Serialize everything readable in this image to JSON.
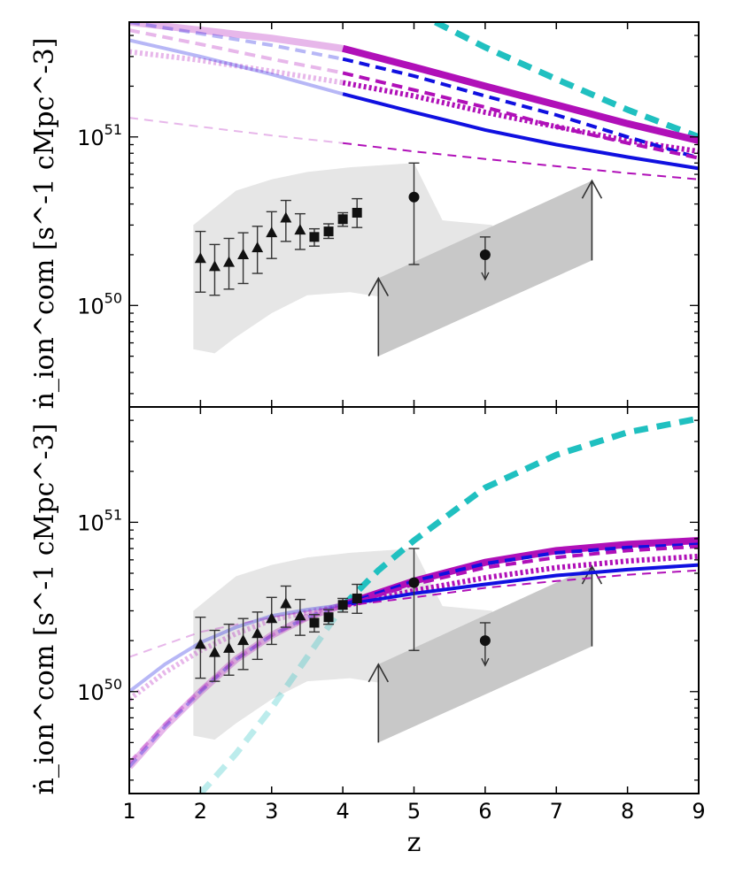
{
  "chart_data": [
    {
      "type": "line",
      "panel": "top",
      "ylabel": "ṅ_ion^com  [s^-1  cMpc^-3]",
      "yscale": "log",
      "xlim": [
        1,
        9
      ],
      "ylim": [
        2.5e+49,
        4.8e+51
      ],
      "y_ticks": [
        {
          "base": "10",
          "exp": "50",
          "value": 1e+50
        },
        {
          "base": "10",
          "exp": "51",
          "value": 1e+51
        }
      ],
      "series": [
        {
          "name": "cyan thick dashed",
          "color": "#20c0c0",
          "style": "dashed",
          "width": 7,
          "alpha_before_z4": 1.0,
          "x": [
            5.3,
            6,
            7,
            8,
            9
          ],
          "y": [
            4.8e+51,
            3.4e+51,
            2.2e+51,
            1.45e+51,
            1e+51
          ]
        },
        {
          "name": "magenta thick solid",
          "color": "#b010b8",
          "style": "solid",
          "width": 8,
          "x": [
            1,
            2,
            3,
            4,
            5,
            6,
            7,
            8,
            9
          ],
          "y": [
            4.8e+51,
            4.3e+51,
            3.85e+51,
            3.35e+51,
            2.6e+51,
            2e+51,
            1.55e+51,
            1.2e+51,
            9.5e+50
          ]
        },
        {
          "name": "magenta dotted",
          "color": "#b010b8",
          "style": "dotted",
          "width": 6,
          "x": [
            1,
            2,
            3,
            4,
            5,
            6,
            7,
            8,
            9
          ],
          "y": [
            3.2e+51,
            2.85e+51,
            2.45e+51,
            2.1e+51,
            1.75e+51,
            1.4e+51,
            1.15e+51,
            9.5e+50,
            8.2e+50
          ]
        },
        {
          "name": "blue dashed",
          "color": "#1010e0",
          "style": "dashed",
          "width": 4,
          "x": [
            1,
            2,
            3,
            4,
            5,
            6,
            7,
            8,
            9
          ],
          "y": [
            4.8e+51,
            4.1e+51,
            3.5e+51,
            2.9e+51,
            2.3e+51,
            1.75e+51,
            1.35e+51,
            1e+51,
            7.5e+50
          ]
        },
        {
          "name": "magenta dashed",
          "color": "#b010b8",
          "style": "dashed",
          "width": 4,
          "x": [
            1,
            2,
            3,
            4,
            5,
            6,
            7,
            8,
            9
          ],
          "y": [
            4.3e+51,
            3.55e+51,
            2.9e+51,
            2.4e+51,
            1.9e+51,
            1.5e+51,
            1.15e+51,
            9.2e+50,
            7.5e+50
          ]
        },
        {
          "name": "blue solid",
          "color": "#1010e0",
          "style": "solid",
          "width": 4,
          "x": [
            1,
            2,
            3,
            4,
            5,
            6,
            7,
            8,
            9
          ],
          "y": [
            3.75e+51,
            3e+51,
            2.35e+51,
            1.8e+51,
            1.4e+51,
            1.1e+51,
            9e+50,
            7.6e+50,
            6.5e+50
          ]
        },
        {
          "name": "magenta thin dashed",
          "color": "#b010b8",
          "style": "dashed",
          "width": 2,
          "x": [
            1,
            2,
            3,
            4,
            5,
            6,
            7,
            8,
            9
          ],
          "y": [
            1.3e+51,
            1.15e+51,
            1.02e+51,
            9.2e+50,
            8.2e+50,
            7.4e+50,
            6.7e+50,
            6.1e+50,
            5.6e+50
          ]
        }
      ],
      "triangles": {
        "x": [
          2.0,
          2.2,
          2.4,
          2.6,
          2.8,
          3.0,
          3.2,
          3.4
        ],
        "y": [
          1.9e+50,
          1.7e+50,
          1.8e+50,
          2e+50,
          2.2e+50,
          2.7e+50,
          3.3e+50,
          2.8e+50
        ],
        "ylo": [
          1.2e+50,
          1.15e+50,
          1.25e+50,
          1.35e+50,
          1.55e+50,
          1.9e+50,
          2.4e+50,
          2.15e+50
        ],
        "yhi": [
          2.75e+50,
          2.3e+50,
          2.5e+50,
          2.7e+50,
          2.95e+50,
          3.6e+50,
          4.2e+50,
          3.5e+50
        ]
      },
      "squares": {
        "x": [
          3.6,
          3.8,
          4.0,
          4.2
        ],
        "y": [
          2.55e+50,
          2.75e+50,
          3.25e+50,
          3.55e+50
        ],
        "ylo": [
          2.25e+50,
          2.5e+50,
          2.95e+50,
          2.9e+50
        ],
        "yhi": [
          2.85e+50,
          3.05e+50,
          3.55e+50,
          4.3e+50
        ]
      },
      "circles": [
        {
          "x": 5.0,
          "y": 4.4e+50,
          "ylo": 1.75e+50,
          "yhi": 7e+50
        },
        {
          "x": 6.0,
          "y": 2e+50,
          "ylo": 1.9e+50,
          "yhi": 2.55e+50,
          "upper_limit": true
        }
      ],
      "light_band": {
        "x": [
          1.9,
          2.2,
          2.5,
          3.0,
          3.5,
          4.1,
          5.0,
          5.4,
          6.1
        ],
        "lower": [
          5.5e+49,
          5.2e+49,
          6.5e+49,
          9e+49,
          1.15e+50,
          1.2e+50,
          1.05e+50,
          1e+50,
          1e+50
        ],
        "upper": [
          3e+50,
          3.8e+50,
          4.8e+50,
          5.6e+50,
          6.2e+50,
          6.6e+50,
          7e+50,
          3.2e+50,
          3e+50
        ]
      },
      "dark_band": {
        "x": [
          4.5,
          7.5
        ],
        "lower": [
          5e+49,
          1.85e+50
        ],
        "upper": [
          1.45e+50,
          5.5e+50
        ]
      },
      "lower_limit_arrows": [
        {
          "x": 4.5,
          "y_from": 5e+49,
          "y_to": 1.45e+50
        },
        {
          "x": 7.5,
          "y_from": 1.85e+50,
          "y_to": 5.5e+50
        }
      ]
    },
    {
      "type": "line",
      "panel": "bottom",
      "xlabel": "z",
      "ylabel": "ṅ_ion^com  [s^-1  cMpc^-3]",
      "yscale": "log",
      "xlim": [
        1,
        9
      ],
      "ylim": [
        2.5e+49,
        4.8e+51
      ],
      "x_ticks": [
        "1",
        "2",
        "3",
        "4",
        "5",
        "6",
        "7",
        "8",
        "9"
      ],
      "y_ticks": [
        {
          "base": "10",
          "exp": "50",
          "value": 1e+50
        },
        {
          "base": "10",
          "exp": "51",
          "value": 1e+51
        }
      ],
      "series": [
        {
          "name": "cyan thick dashed",
          "color": "#20c0c0",
          "style": "dashed",
          "width": 7,
          "x": [
            2.0,
            2.5,
            3.0,
            3.5,
            4.0,
            4.5,
            5,
            6,
            7,
            8,
            9
          ],
          "y": [
            2.5e+49,
            4.3e+49,
            8e+49,
            1.6e+50,
            3.2e+50,
            5.2e+50,
            7.8e+50,
            1.6e+51,
            2.5e+51,
            3.4e+51,
            4.1e+51
          ]
        },
        {
          "name": "magenta thick solid",
          "color": "#b010b8",
          "style": "solid",
          "width": 8,
          "x": [
            1,
            1.5,
            2,
            2.5,
            3,
            3.5,
            4,
            5,
            6,
            7,
            8,
            9
          ],
          "y": [
            3.6e+49,
            6.2e+49,
            1e+50,
            1.55e+50,
            2.15e+50,
            2.75e+50,
            3.25e+50,
            4.5e+50,
            5.8e+50,
            6.8e+50,
            7.4e+50,
            7.8e+50
          ]
        },
        {
          "name": "magenta dotted",
          "color": "#b010b8",
          "style": "dotted",
          "width": 6,
          "x": [
            1,
            1.5,
            2,
            2.5,
            3,
            3.5,
            4,
            5,
            6,
            7,
            8,
            9
          ],
          "y": [
            9e+49,
            1.3e+50,
            1.75e+50,
            2.2e+50,
            2.65e+50,
            2.95e+50,
            3.2e+50,
            3.95e+50,
            4.7e+50,
            5.4e+50,
            5.9e+50,
            6.3e+50
          ]
        },
        {
          "name": "blue dashed",
          "color": "#1010e0",
          "style": "dashed",
          "width": 4,
          "x": [
            1,
            1.5,
            2,
            2.5,
            3,
            3.5,
            4,
            5,
            6,
            7,
            8,
            9
          ],
          "y": [
            3.6e+49,
            6.2e+49,
            1e+50,
            1.55e+50,
            2.15e+50,
            2.75e+50,
            3.25e+50,
            4.5e+50,
            5.7e+50,
            6.6e+50,
            7.1e+50,
            7.4e+50
          ]
        },
        {
          "name": "magenta dashed",
          "color": "#b010b8",
          "style": "dashed",
          "width": 4,
          "x": [
            1,
            1.5,
            2,
            2.5,
            3,
            3.5,
            4,
            5,
            6,
            7,
            8,
            9
          ],
          "y": [
            3.8e+49,
            6.4e+49,
            1.02e+50,
            1.55e+50,
            2.15e+50,
            2.7e+50,
            3.2e+50,
            4.3e+50,
            5.4e+50,
            6.2e+50,
            6.8e+50,
            7.2e+50
          ]
        },
        {
          "name": "blue solid",
          "color": "#1010e0",
          "style": "solid",
          "width": 4,
          "x": [
            1,
            1.5,
            2,
            2.5,
            3,
            3.5,
            4,
            5,
            6,
            7,
            8,
            9
          ],
          "y": [
            1e+50,
            1.45e+50,
            1.95e+50,
            2.4e+50,
            2.8e+50,
            3.05e+50,
            3.25e+50,
            3.8e+50,
            4.3e+50,
            4.85e+50,
            5.25e+50,
            5.6e+50
          ]
        },
        {
          "name": "magenta thin dashed",
          "color": "#b010b8",
          "style": "dashed",
          "width": 2,
          "x": [
            1,
            2,
            3,
            4,
            5,
            6,
            7,
            8,
            9
          ],
          "y": [
            1.6e+50,
            2.25e+50,
            2.75e+50,
            3.2e+50,
            3.6e+50,
            4.1e+50,
            4.5e+50,
            4.9e+50,
            5.2e+50
          ]
        }
      ],
      "triangles": {
        "x": [
          2.0,
          2.2,
          2.4,
          2.6,
          2.8,
          3.0,
          3.2,
          3.4
        ],
        "y": [
          1.9e+50,
          1.7e+50,
          1.8e+50,
          2e+50,
          2.2e+50,
          2.7e+50,
          3.3e+50,
          2.8e+50
        ],
        "ylo": [
          1.2e+50,
          1.15e+50,
          1.25e+50,
          1.35e+50,
          1.55e+50,
          1.9e+50,
          2.4e+50,
          2.15e+50
        ],
        "yhi": [
          2.75e+50,
          2.3e+50,
          2.5e+50,
          2.7e+50,
          2.95e+50,
          3.6e+50,
          4.2e+50,
          3.5e+50
        ]
      },
      "squares": {
        "x": [
          3.6,
          3.8,
          4.0,
          4.2
        ],
        "y": [
          2.55e+50,
          2.75e+50,
          3.25e+50,
          3.55e+50
        ],
        "ylo": [
          2.25e+50,
          2.5e+50,
          2.95e+50,
          2.9e+50
        ],
        "yhi": [
          2.85e+50,
          3.05e+50,
          3.55e+50,
          4.3e+50
        ]
      },
      "circles": [
        {
          "x": 5.0,
          "y": 4.4e+50,
          "ylo": 1.75e+50,
          "yhi": 7e+50
        },
        {
          "x": 6.0,
          "y": 2e+50,
          "ylo": 1.9e+50,
          "yhi": 2.55e+50,
          "upper_limit": true
        }
      ],
      "light_band": {
        "x": [
          1.9,
          2.2,
          2.5,
          3.0,
          3.5,
          4.1,
          5.0,
          5.4,
          6.1
        ],
        "lower": [
          5.5e+49,
          5.2e+49,
          6.5e+49,
          9e+49,
          1.15e+50,
          1.2e+50,
          1.05e+50,
          1e+50,
          1e+50
        ],
        "upper": [
          3e+50,
          3.8e+50,
          4.8e+50,
          5.6e+50,
          6.2e+50,
          6.6e+50,
          7e+50,
          3.2e+50,
          3e+50
        ]
      },
      "dark_band": {
        "x": [
          4.5,
          7.5
        ],
        "lower": [
          5e+49,
          1.85e+50
        ],
        "upper": [
          1.45e+50,
          5.5e+50
        ]
      },
      "lower_limit_arrows": [
        {
          "x": 4.5,
          "y_from": 5e+49,
          "y_to": 1.45e+50
        },
        {
          "x": 7.5,
          "y_from": 1.85e+50,
          "y_to": 5.5e+50
        }
      ]
    }
  ]
}
